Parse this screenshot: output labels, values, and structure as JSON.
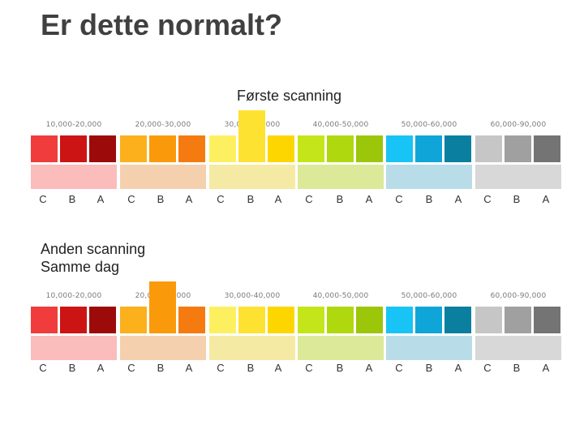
{
  "slide": {
    "title": "Er dette normalt?",
    "first_label": "Første scanning",
    "second_label_line1": "Anden scanning",
    "second_label_line2": "Samme dag"
  },
  "ranges": [
    "10,000-20,000",
    "20,000-30,000",
    "30,000-40,000",
    "40,000-50,000",
    "50,000-60,000",
    "60,000-90,000"
  ],
  "grade_letters": [
    "C",
    "B",
    "A"
  ],
  "colors": {
    "groups": [
      {
        "cells": [
          "#f03c3c",
          "#cc1414",
          "#9c0a0a"
        ],
        "band": "#fbbcbc"
      },
      {
        "cells": [
          "#fbb01c",
          "#fa9a0a",
          "#f57a10"
        ],
        "band": "#f5d0ae"
      },
      {
        "cells": [
          "#fdf060",
          "#fde232",
          "#fdd600"
        ],
        "band": "#f5eaa4"
      },
      {
        "cells": [
          "#c3e51a",
          "#b0d80e",
          "#9cc60a"
        ],
        "band": "#dce998"
      },
      {
        "cells": [
          "#18c4f5",
          "#10a5d8",
          "#0a7fa0"
        ],
        "band": "#b9dde8"
      },
      {
        "cells": [
          "#c6c6c6",
          "#a0a0a0",
          "#747474"
        ],
        "band": "#d8d8d8"
      }
    ]
  },
  "scans": [
    {
      "id": "first",
      "highlight_group": 2,
      "highlight_cell": 1
    },
    {
      "id": "second",
      "highlight_group": 1,
      "highlight_cell": 1
    }
  ]
}
